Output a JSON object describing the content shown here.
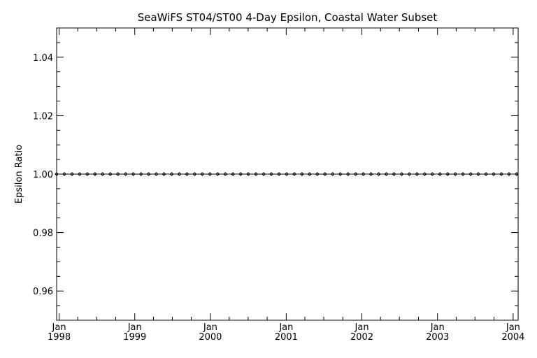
{
  "chart_data": {
    "type": "line",
    "title": "SeaWiFS ST04/ST00 4-Day Epsilon, Coastal Water Subset",
    "xlabel": "",
    "ylabel": "Epsilon Ratio",
    "ylim": [
      0.95,
      1.05
    ],
    "yticks": [
      0.96,
      0.98,
      1.0,
      1.02,
      1.04
    ],
    "ytick_labels": [
      "0.96",
      "0.98",
      "1.00",
      "1.02",
      "1.04"
    ],
    "xlim": [
      "1997-12-20",
      "2004-01-25"
    ],
    "xticks": [
      {
        "date": "1998-01-01",
        "month": "Jan",
        "year": "1998"
      },
      {
        "date": "1999-01-01",
        "month": "Jan",
        "year": "1999"
      },
      {
        "date": "2000-01-01",
        "month": "Jan",
        "year": "2000"
      },
      {
        "date": "2001-01-01",
        "month": "Jan",
        "year": "2001"
      },
      {
        "date": "2002-01-01",
        "month": "Jan",
        "year": "2002"
      },
      {
        "date": "2003-01-01",
        "month": "Jan",
        "year": "2003"
      },
      {
        "date": "2004-01-01",
        "month": "Jan",
        "year": "2004"
      }
    ],
    "grid": false,
    "series": [
      {
        "marker": "diamond",
        "color": "#000000",
        "x": [
          "1997-12-20",
          "1998-01-26",
          "1998-03-04",
          "1998-04-10",
          "1998-05-17",
          "1998-06-23",
          "1998-07-30",
          "1998-09-05",
          "1998-10-12",
          "1998-11-18",
          "1998-12-25",
          "1999-01-31",
          "1999-03-09",
          "1999-04-15",
          "1999-05-22",
          "1999-06-28",
          "1999-08-04",
          "1999-09-10",
          "1999-10-17",
          "1999-11-23",
          "1999-12-30",
          "2000-02-05",
          "2000-03-13",
          "2000-04-19",
          "2000-05-26",
          "2000-07-02",
          "2000-08-08",
          "2000-09-14",
          "2000-10-21",
          "2000-11-27",
          "2001-01-03",
          "2001-02-09",
          "2001-03-18",
          "2001-04-24",
          "2001-05-31",
          "2001-07-07",
          "2001-08-13",
          "2001-09-19",
          "2001-10-26",
          "2001-12-02",
          "2002-01-08",
          "2002-02-14",
          "2002-03-23",
          "2002-04-29",
          "2002-06-05",
          "2002-07-12",
          "2002-08-18",
          "2002-09-24",
          "2002-10-31",
          "2002-12-07",
          "2003-01-13",
          "2003-02-19",
          "2003-03-28",
          "2003-05-04",
          "2003-06-10",
          "2003-07-17",
          "2003-08-23",
          "2003-09-29",
          "2003-11-05",
          "2003-12-12",
          "2004-01-18"
        ],
        "y": [
          1.0,
          1.0,
          1.0,
          1.0,
          1.0,
          1.0,
          1.0,
          1.0,
          1.0,
          1.0,
          1.0,
          1.0,
          1.0,
          1.0,
          1.0,
          1.0,
          1.0,
          1.0,
          1.0,
          1.0,
          1.0,
          1.0,
          1.0,
          1.0,
          1.0,
          1.0,
          1.0,
          1.0,
          1.0,
          1.0,
          1.0,
          1.0,
          1.0,
          1.0,
          1.0,
          1.0,
          1.0,
          1.0,
          1.0,
          1.0,
          1.0,
          1.0,
          1.0,
          1.0,
          1.0,
          1.0,
          1.0,
          1.0,
          1.0,
          1.0,
          1.0,
          1.0,
          1.0,
          1.0,
          1.0,
          1.0,
          1.0,
          1.0,
          1.0,
          1.0,
          1.0
        ]
      }
    ]
  }
}
